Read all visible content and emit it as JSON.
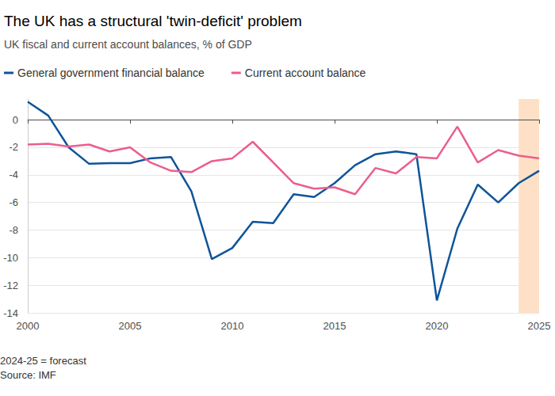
{
  "chart_data": {
    "type": "line",
    "title": "The UK has a structural 'twin-deficit' problem",
    "subtitle": "UK fiscal and current account balances, % of GDP",
    "x": [
      2000,
      2001,
      2002,
      2003,
      2004,
      2005,
      2006,
      2007,
      2008,
      2009,
      2010,
      2011,
      2012,
      2013,
      2014,
      2015,
      2016,
      2017,
      2018,
      2019,
      2020,
      2021,
      2022,
      2023,
      2024,
      2025
    ],
    "series": [
      {
        "name": "General government financial balance",
        "color": "#0f5499",
        "values": [
          1.3,
          0.3,
          -2.0,
          -3.2,
          -3.15,
          -3.15,
          -2.8,
          -2.7,
          -5.2,
          -10.1,
          -9.3,
          -7.4,
          -7.5,
          -5.4,
          -5.6,
          -4.6,
          -3.3,
          -2.5,
          -2.3,
          -2.5,
          -13.1,
          -7.9,
          -4.7,
          -6.0,
          -4.6,
          -3.7
        ]
      },
      {
        "name": "Current account balance",
        "color": "#eb5e8d",
        "values": [
          -1.8,
          -1.75,
          -1.95,
          -1.8,
          -2.3,
          -2.0,
          -3.1,
          -3.7,
          -3.8,
          -3.0,
          -2.8,
          -1.6,
          -3.1,
          -4.6,
          -5.0,
          -4.9,
          -5.4,
          -3.5,
          -3.9,
          -2.7,
          -2.8,
          -0.5,
          -3.1,
          -2.2,
          -2.6,
          -2.8
        ]
      }
    ],
    "xlim": [
      2000,
      2025
    ],
    "xticks": [
      2000,
      2005,
      2010,
      2015,
      2020,
      2025
    ],
    "ylim": [
      -14,
      1.5
    ],
    "yticks": [
      -14,
      -12,
      -10,
      -8,
      -6,
      -4,
      -2,
      0
    ],
    "forecast_range": [
      2024,
      2025
    ],
    "forecast_color": "#fde0c6",
    "notes": [
      "2024-25 = forecast",
      "Source: IMF"
    ],
    "grid": true,
    "legend": "top-left"
  }
}
